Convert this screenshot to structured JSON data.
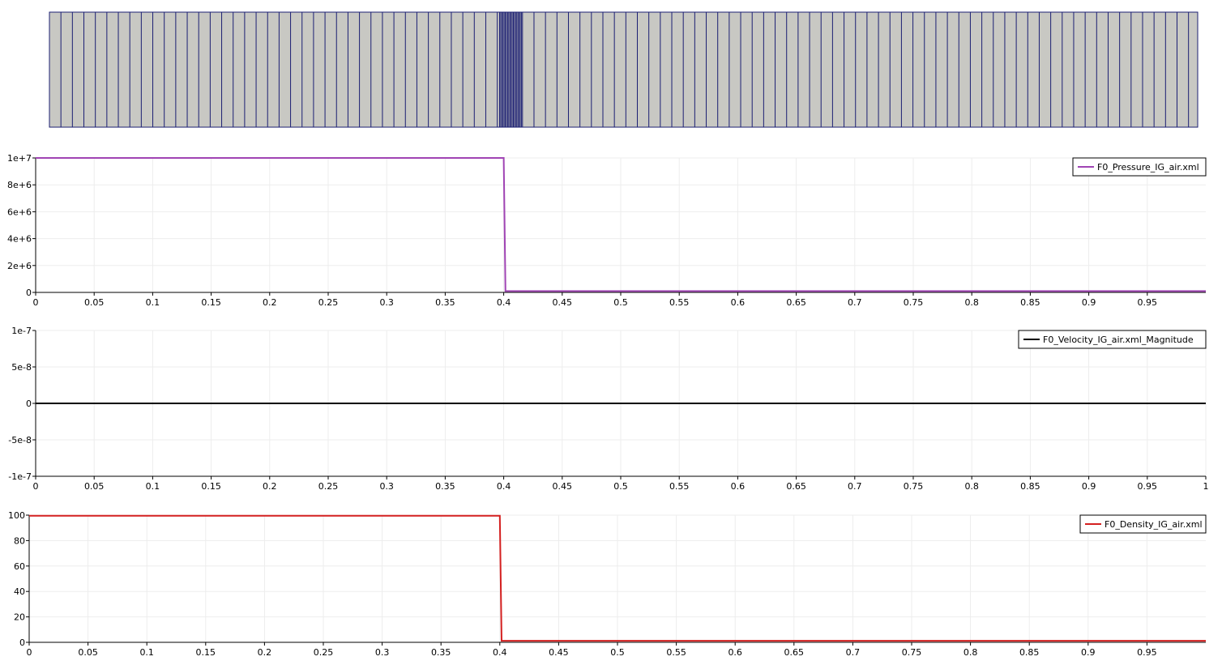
{
  "mesh": {
    "fill_color": "#c8c8c3",
    "edge_color": "#1b1f73",
    "cell_spacing_outer": 0.01,
    "refined_region": [
      0.392,
      0.412
    ],
    "cell_spacing_refined": 0.001
  },
  "chart_data": [
    {
      "type": "line",
      "id": "pressure",
      "x_ticks": [
        "0",
        "0.05",
        "0.1",
        "0.15",
        "0.2",
        "0.25",
        "0.3",
        "0.35",
        "0.4",
        "0.45",
        "0.5",
        "0.55",
        "0.6",
        "0.65",
        "0.7",
        "0.75",
        "0.8",
        "0.85",
        "0.9",
        "0.95"
      ],
      "x_tick_values": [
        0,
        0.05,
        0.1,
        0.15,
        0.2,
        0.25,
        0.3,
        0.35,
        0.4,
        0.45,
        0.5,
        0.55,
        0.6,
        0.65,
        0.7,
        0.75,
        0.8,
        0.85,
        0.9,
        0.95
      ],
      "y_ticks": [
        "0",
        "2e+6",
        "4e+6",
        "6e+6",
        "8e+6",
        "1e+7"
      ],
      "y_tick_values": [
        0,
        2000000,
        4000000,
        6000000,
        8000000,
        10000000
      ],
      "xlim": [
        0,
        1
      ],
      "ylim": [
        0,
        10000000
      ],
      "grid": true,
      "legend_position": "top-right",
      "series": [
        {
          "name": "F0_Pressure_IG_air.xml",
          "color": "#a044b4",
          "x": [
            0,
            0.4,
            0.4015,
            1
          ],
          "y": [
            10000000,
            10000000,
            100000,
            100000
          ]
        }
      ]
    },
    {
      "type": "line",
      "id": "velocity",
      "x_ticks": [
        "0",
        "0.05",
        "0.1",
        "0.15",
        "0.2",
        "0.25",
        "0.3",
        "0.35",
        "0.4",
        "0.45",
        "0.5",
        "0.55",
        "0.6",
        "0.65",
        "0.7",
        "0.75",
        "0.8",
        "0.85",
        "0.9",
        "0.95",
        "1"
      ],
      "x_tick_values": [
        0,
        0.05,
        0.1,
        0.15,
        0.2,
        0.25,
        0.3,
        0.35,
        0.4,
        0.45,
        0.5,
        0.55,
        0.6,
        0.65,
        0.7,
        0.75,
        0.8,
        0.85,
        0.9,
        0.95,
        1
      ],
      "y_ticks": [
        "-1e-7",
        "-5e-8",
        "0",
        "5e-8",
        "1e-7"
      ],
      "y_tick_values": [
        -1e-07,
        -5e-08,
        0,
        5e-08,
        1e-07
      ],
      "xlim": [
        0,
        1
      ],
      "ylim": [
        -1e-07,
        1e-07
      ],
      "grid": true,
      "legend_position": "top-right",
      "series": [
        {
          "name": "F0_Velocity_IG_air.xml_Magnitude",
          "color": "#000000",
          "x": [
            0,
            1
          ],
          "y": [
            0,
            0
          ]
        }
      ]
    },
    {
      "type": "line",
      "id": "density",
      "x_ticks": [
        "0",
        "0.05",
        "0.1",
        "0.15",
        "0.2",
        "0.25",
        "0.3",
        "0.35",
        "0.4",
        "0.45",
        "0.5",
        "0.55",
        "0.6",
        "0.65",
        "0.7",
        "0.75",
        "0.8",
        "0.85",
        "0.9",
        "0.95"
      ],
      "x_tick_values": [
        0,
        0.05,
        0.1,
        0.15,
        0.2,
        0.25,
        0.3,
        0.35,
        0.4,
        0.45,
        0.5,
        0.55,
        0.6,
        0.65,
        0.7,
        0.75,
        0.8,
        0.85,
        0.9,
        0.95
      ],
      "y_ticks": [
        "0",
        "20",
        "40",
        "60",
        "80",
        "100"
      ],
      "y_tick_values": [
        0,
        20,
        40,
        60,
        80,
        100
      ],
      "xlim": [
        0,
        1
      ],
      "ylim": [
        0,
        100
      ],
      "grid": true,
      "legend_position": "top-right",
      "series": [
        {
          "name": "F0_Density_IG_air.xml",
          "color": "#d42020",
          "x": [
            0,
            0.4,
            0.4015,
            1
          ],
          "y": [
            99.5,
            99.5,
            1.2,
            1.2
          ]
        }
      ]
    }
  ]
}
